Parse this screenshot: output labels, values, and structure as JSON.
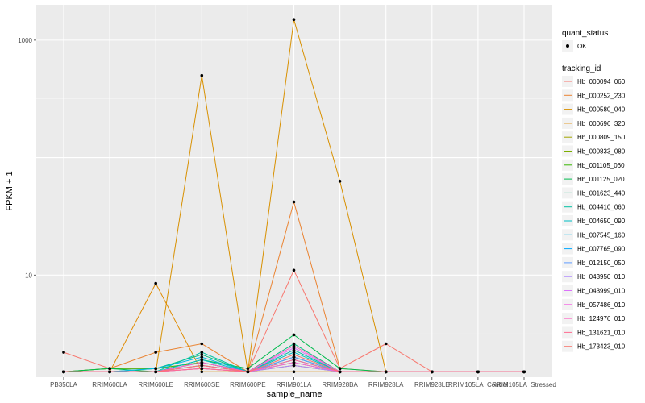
{
  "chart_data": {
    "type": "line",
    "xlabel": "sample_name",
    "ylabel": "FPKM + 1",
    "y_scale": "log10",
    "ylim": [
      1.35,
      2000
    ],
    "y_ticks": [
      10,
      1000
    ],
    "y_tick_labels": [
      "10",
      "1000"
    ],
    "categories": [
      "PB350LA",
      "RRIM600LA",
      "RRIM600LE",
      "RRIM600SE",
      "RRIM600PE",
      "RRIM901LA",
      "RRIM928BA",
      "RRIM928LA",
      "RRIM928LE",
      "RRIM105LA_Control",
      "RRIM105LA_Stressed"
    ],
    "series": [
      {
        "name": "Hb_000094_060",
        "color": "#F8766D",
        "values": [
          2.2,
          1.6,
          1.6,
          1.8,
          1.5,
          11,
          1.6,
          2.6,
          1.5,
          1.5,
          1.5
        ]
      },
      {
        "name": "Hb_000252_230",
        "color": "#EA8331",
        "values": [
          1.5,
          1.6,
          2.2,
          2.6,
          1.5,
          42,
          1.6,
          1.5,
          1.5,
          1.5,
          1.5
        ]
      },
      {
        "name": "Hb_000580_040",
        "color": "#D89000",
        "values": [
          1.5,
          1.5,
          1.5,
          500,
          1.5,
          1500,
          63,
          1.5,
          1.5,
          1.5,
          1.5
        ]
      },
      {
        "name": "Hb_000696_320",
        "color": "#E08B00",
        "values": [
          1.5,
          1.5,
          8.5,
          1.5,
          1.5,
          1.5,
          1.5,
          1.5,
          1.5,
          1.5,
          1.5
        ]
      },
      {
        "name": "Hb_000809_150",
        "color": "#A3A500",
        "values": [
          1.5,
          1.5,
          1.5,
          1.6,
          1.5,
          1.7,
          1.5,
          1.5,
          1.5,
          1.5,
          1.5
        ]
      },
      {
        "name": "Hb_000833_080",
        "color": "#7CAE00",
        "values": [
          1.5,
          1.5,
          1.5,
          1.7,
          1.5,
          1.8,
          1.5,
          1.5,
          1.5,
          1.5,
          1.5
        ]
      },
      {
        "name": "Hb_001105_060",
        "color": "#39B600",
        "values": [
          1.5,
          1.6,
          1.6,
          1.8,
          1.5,
          2.0,
          1.5,
          1.5,
          1.5,
          1.5,
          1.5
        ]
      },
      {
        "name": "Hb_001125_020",
        "color": "#00BB4E",
        "values": [
          1.5,
          1.6,
          1.5,
          1.9,
          1.6,
          3.1,
          1.6,
          1.5,
          1.5,
          1.5,
          1.5
        ]
      },
      {
        "name": "Hb_001623_440",
        "color": "#00BF7D",
        "values": [
          1.5,
          1.5,
          1.6,
          2.1,
          1.5,
          2.6,
          1.5,
          1.5,
          1.5,
          1.5,
          1.5
        ]
      },
      {
        "name": "Hb_004410_060",
        "color": "#00C1A3",
        "values": [
          1.5,
          1.5,
          1.5,
          2.2,
          1.5,
          2.3,
          1.5,
          1.5,
          1.5,
          1.5,
          1.5
        ]
      },
      {
        "name": "Hb_004650_090",
        "color": "#00BFC4",
        "values": [
          1.5,
          1.5,
          1.5,
          1.9,
          1.5,
          2.2,
          1.5,
          1.5,
          1.5,
          1.5,
          1.5
        ]
      },
      {
        "name": "Hb_007545_160",
        "color": "#00B8E7",
        "values": [
          1.5,
          1.5,
          1.6,
          2.0,
          1.5,
          2.0,
          1.5,
          1.5,
          1.5,
          1.5,
          1.5
        ]
      },
      {
        "name": "Hb_007765_090",
        "color": "#00A9FF",
        "values": [
          1.5,
          1.5,
          1.5,
          1.8,
          1.5,
          1.9,
          1.5,
          1.5,
          1.5,
          1.5,
          1.5
        ]
      },
      {
        "name": "Hb_012150_050",
        "color": "#619CFF",
        "values": [
          1.5,
          1.5,
          1.5,
          1.7,
          1.5,
          2.0,
          1.5,
          1.5,
          1.5,
          1.5,
          1.5
        ]
      },
      {
        "name": "Hb_043950_010",
        "color": "#AE87FF",
        "values": [
          1.5,
          1.5,
          1.5,
          1.6,
          1.5,
          1.7,
          1.5,
          1.5,
          1.5,
          1.5,
          1.5
        ]
      },
      {
        "name": "Hb_043999_010",
        "color": "#DB72FB",
        "values": [
          1.5,
          1.5,
          1.5,
          1.7,
          1.5,
          2.4,
          1.5,
          1.5,
          1.5,
          1.5,
          1.5
        ]
      },
      {
        "name": "Hb_057486_010",
        "color": "#F564E3",
        "values": [
          1.5,
          1.5,
          1.5,
          1.6,
          1.5,
          1.8,
          1.5,
          1.5,
          1.5,
          1.5,
          1.5
        ]
      },
      {
        "name": "Hb_124976_010",
        "color": "#FF61C3",
        "values": [
          1.5,
          1.5,
          1.5,
          1.8,
          1.5,
          2.5,
          1.5,
          1.5,
          1.5,
          1.5,
          1.5
        ]
      },
      {
        "name": "Hb_131621_010",
        "color": "#FF6C91",
        "values": [
          1.5,
          1.5,
          1.5,
          1.6,
          1.5,
          1.9,
          1.5,
          1.5,
          1.5,
          1.5,
          1.5
        ]
      },
      {
        "name": "Hb_173423_010",
        "color": "#F8766D",
        "values": [
          1.5,
          1.5,
          1.5,
          1.7,
          1.5,
          2.1,
          1.5,
          1.5,
          1.5,
          1.5,
          1.5
        ]
      }
    ],
    "point_color": "#000000",
    "panel_bg": "#EBEBEB",
    "grid": true,
    "legend_position": "right",
    "legends": [
      {
        "title": "quant_status",
        "entries": [
          "OK"
        ]
      },
      {
        "title": "tracking_id"
      }
    ]
  }
}
